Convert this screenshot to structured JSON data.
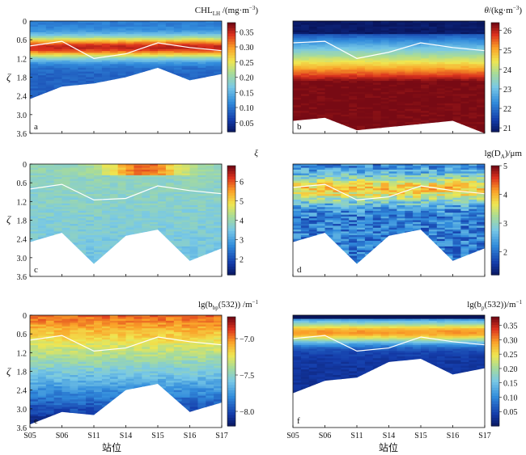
{
  "figure": {
    "y_axis_label": "ζ",
    "x_axis_label": "站位"
  },
  "chart_data": [
    {
      "id": "a",
      "type": "heatmap",
      "panel_label": "a",
      "colorbar_title": "CHL_LH /(mg·m⁻³)",
      "title_main": "CHL",
      "title_sub": "LH",
      "title_unit": " /(mg·m",
      "title_sup": "−3",
      "title_close": ")",
      "colorbar_ticks": [
        "0.35",
        "0.30",
        "0.25",
        "0.20",
        "0.15",
        "0.10",
        "0.05"
      ],
      "colorbar_values": [
        0.35,
        0.3,
        0.25,
        0.2,
        0.15,
        0.1,
        0.05
      ],
      "colorbar_range": [
        0.02,
        0.38
      ],
      "y_ticks": [
        "0",
        "0.6",
        "1.2",
        "1.8",
        "2.4",
        "3.0",
        "3.6"
      ],
      "ylim": [
        0,
        3.6
      ],
      "stations": [
        "S05",
        "S06",
        "S11",
        "S14",
        "S15",
        "S16",
        "S17"
      ],
      "bottom_depth": [
        2.5,
        2.1,
        2.0,
        1.8,
        1.5,
        1.9,
        1.7
      ],
      "white_line": [
        0.8,
        0.65,
        1.2,
        1.05,
        0.7,
        0.85,
        0.95
      ],
      "cmap_reversed": false,
      "field": "chl"
    },
    {
      "id": "b",
      "type": "heatmap",
      "panel_label": "b",
      "colorbar_title": "θ/(kg·m⁻³)",
      "title_main": "θ",
      "title_sub": "",
      "title_unit": "/(kg·m",
      "title_sup": "−3",
      "title_close": ")",
      "colorbar_ticks": [
        "26",
        "25",
        "24",
        "23",
        "22",
        "21"
      ],
      "colorbar_values": [
        26,
        25,
        24,
        23,
        22,
        21
      ],
      "colorbar_range": [
        20.8,
        26.4
      ],
      "y_ticks": [],
      "ylim": [
        0,
        3.6
      ],
      "stations": [
        "S05",
        "S06",
        "S11",
        "S14",
        "S15",
        "S16",
        "S17"
      ],
      "bottom_depth": [
        3.2,
        3.1,
        3.5,
        3.4,
        3.3,
        3.2,
        3.6
      ],
      "white_line": [
        0.7,
        0.65,
        1.2,
        1.0,
        0.7,
        0.85,
        0.95
      ],
      "field": "theta"
    },
    {
      "id": "c",
      "type": "heatmap",
      "panel_label": "c",
      "colorbar_title": "ξ",
      "title_main": "ξ",
      "title_sub": "",
      "title_unit": "",
      "title_sup": "",
      "title_close": "",
      "colorbar_ticks": [
        "6",
        "5",
        "4",
        "3",
        "2"
      ],
      "colorbar_values": [
        6,
        5,
        4,
        3,
        2
      ],
      "colorbar_range": [
        1.2,
        6.8
      ],
      "y_ticks": [
        "0",
        "0.6",
        "1.2",
        "1.8",
        "2.4",
        "3.0",
        "3.6"
      ],
      "ylim": [
        0,
        3.6
      ],
      "stations": [
        "S05",
        "S06",
        "S11",
        "S14",
        "S15",
        "S16",
        "S17"
      ],
      "bottom_depth": [
        2.5,
        2.2,
        3.2,
        2.3,
        2.1,
        3.1,
        2.7
      ],
      "white_line": [
        0.8,
        0.65,
        1.15,
        1.1,
        0.7,
        0.85,
        0.95
      ],
      "field": "xi"
    },
    {
      "id": "d",
      "type": "heatmap",
      "panel_label": "d",
      "colorbar_title": "lg(D_A)/μm",
      "title_main": "lg(D",
      "title_sub": "A",
      "title_unit": ")/μm",
      "title_sup": "",
      "title_close": "",
      "colorbar_ticks": [
        "5",
        "4",
        "3",
        "2"
      ],
      "colorbar_values": [
        5,
        4,
        3,
        2
      ],
      "colorbar_range": [
        1.2,
        5.0
      ],
      "y_ticks": [],
      "ylim": [
        0,
        3.6
      ],
      "stations": [
        "S05",
        "S06",
        "S11",
        "S14",
        "S15",
        "S16",
        "S17"
      ],
      "bottom_depth": [
        2.5,
        2.2,
        3.2,
        2.3,
        2.1,
        3.1,
        2.7
      ],
      "white_line": [
        0.75,
        0.65,
        1.15,
        1.05,
        0.7,
        0.85,
        0.95
      ],
      "field": "da"
    },
    {
      "id": "e",
      "type": "heatmap",
      "panel_label": "e",
      "colorbar_title": "lg(b_bp(532)) /m⁻¹",
      "title_main": "lg(b",
      "title_sub": "bp",
      "title_unit": "(532)) /m",
      "title_sup": "−1",
      "title_close": "",
      "colorbar_ticks": [
        "−7.0",
        "−7.5",
        "−8.0"
      ],
      "colorbar_values": [
        -7.0,
        -7.5,
        -8.0
      ],
      "colorbar_range": [
        -8.2,
        -6.7
      ],
      "y_ticks": [
        "0",
        "0.6",
        "1.2",
        "1.8",
        "2.4",
        "3.0",
        "3.6"
      ],
      "ylim": [
        0,
        3.6
      ],
      "stations": [
        "S05",
        "S06",
        "S11",
        "S14",
        "S15",
        "S16",
        "S17"
      ],
      "bottom_depth": [
        3.5,
        3.1,
        3.2,
        2.4,
        2.2,
        3.1,
        2.8
      ],
      "white_line": [
        0.8,
        0.65,
        1.15,
        1.05,
        0.7,
        0.85,
        0.95
      ],
      "field": "bbp_lg"
    },
    {
      "id": "f",
      "type": "heatmap",
      "panel_label": "f",
      "colorbar_title": "lg(b_p(532))/m⁻¹",
      "title_main": "lg(b",
      "title_sub": "p",
      "title_unit": "(532))/m",
      "title_sup": "−1",
      "title_close": "",
      "colorbar_ticks": [
        "0.35",
        "0.30",
        "0.25",
        "0.20",
        "0.15",
        "0.10",
        "0.05"
      ],
      "colorbar_values": [
        0.35,
        0.3,
        0.25,
        0.2,
        0.15,
        0.1,
        0.05
      ],
      "colorbar_range": [
        0.0,
        0.38
      ],
      "y_ticks": [],
      "ylim": [
        0,
        3.6
      ],
      "stations": [
        "S05",
        "S06",
        "S11",
        "S14",
        "S15",
        "S16",
        "S17"
      ],
      "bottom_depth": [
        2.5,
        2.1,
        2.0,
        1.5,
        1.4,
        1.9,
        1.7
      ],
      "white_line": [
        0.75,
        0.65,
        1.15,
        1.05,
        0.7,
        0.85,
        0.95
      ],
      "field": "bp"
    }
  ]
}
